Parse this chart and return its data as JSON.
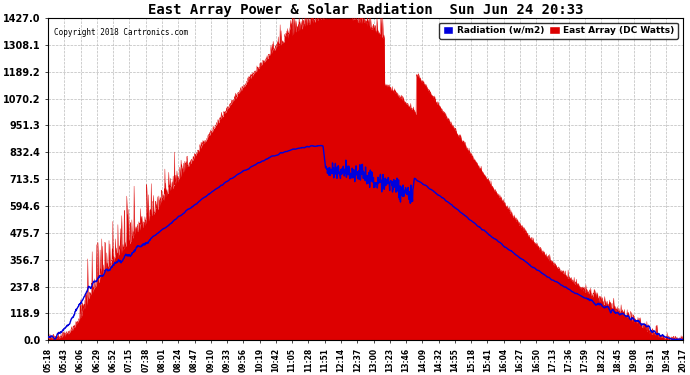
{
  "title": "East Array Power & Solar Radiation  Sun Jun 24 20:33",
  "copyright": "Copyright 2018 Cartronics.com",
  "legend_radiation": "Radiation (w/m2)",
  "legend_east_array": "East Array (DC Watts)",
  "yticks": [
    0.0,
    118.9,
    237.8,
    356.7,
    475.7,
    594.6,
    713.5,
    832.4,
    951.3,
    1070.2,
    1189.2,
    1308.1,
    1427.0
  ],
  "ymax": 1427.0,
  "ymin": 0.0,
  "bg_color": "#ffffff",
  "plot_bg_color": "#ffffff",
  "grid_color": "#bbbbbb",
  "radiation_color": "#0000dd",
  "array_color": "#dd0000",
  "array_fill_color": "#dd0000",
  "xtick_labels": [
    "05:18",
    "05:43",
    "06:06",
    "06:29",
    "06:52",
    "07:15",
    "07:38",
    "08:01",
    "08:24",
    "08:47",
    "09:10",
    "09:33",
    "09:56",
    "10:19",
    "10:42",
    "11:05",
    "11:28",
    "11:51",
    "12:14",
    "12:37",
    "13:00",
    "13:23",
    "13:46",
    "14:09",
    "14:32",
    "14:55",
    "15:18",
    "15:41",
    "16:04",
    "16:27",
    "16:50",
    "17:13",
    "17:36",
    "17:59",
    "18:22",
    "18:45",
    "19:08",
    "19:31",
    "19:54",
    "20:17"
  ],
  "num_points": 2000
}
